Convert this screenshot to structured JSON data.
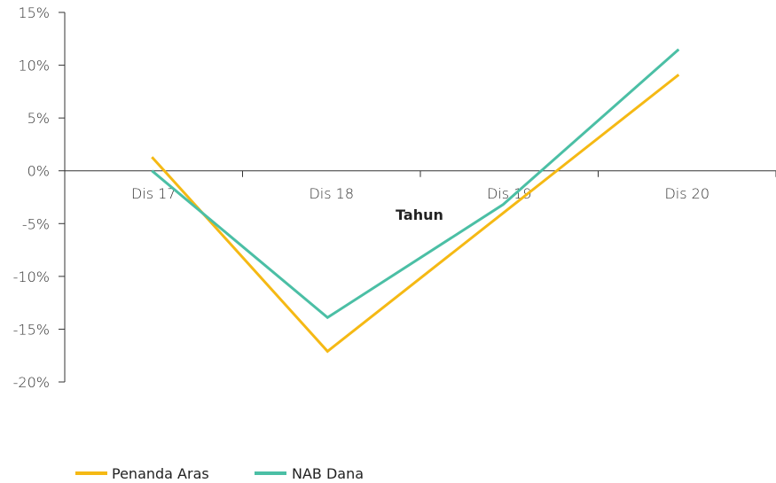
{
  "chart_data": {
    "type": "line",
    "title": "",
    "xlabel": "Tahun",
    "ylabel": "",
    "categories": [
      "Dis 17",
      "Dis 18",
      "Dis 19",
      "Dis 20"
    ],
    "y_ticks": [
      "15%",
      "10%",
      "5%",
      "0%",
      "-5%",
      "-10%",
      "-15%",
      "-20%"
    ],
    "ylim": [
      -20,
      15
    ],
    "series": [
      {
        "name": "Penanda Aras",
        "color": "#f5b914",
        "values": [
          1.3,
          -17.1,
          -4.0,
          9.1
        ]
      },
      {
        "name": "NAB Dana",
        "color": "#4bbfa5",
        "values": [
          0.0,
          -13.9,
          -3.2,
          11.5
        ]
      }
    ],
    "legend_position": "bottom-left",
    "grid": false
  }
}
